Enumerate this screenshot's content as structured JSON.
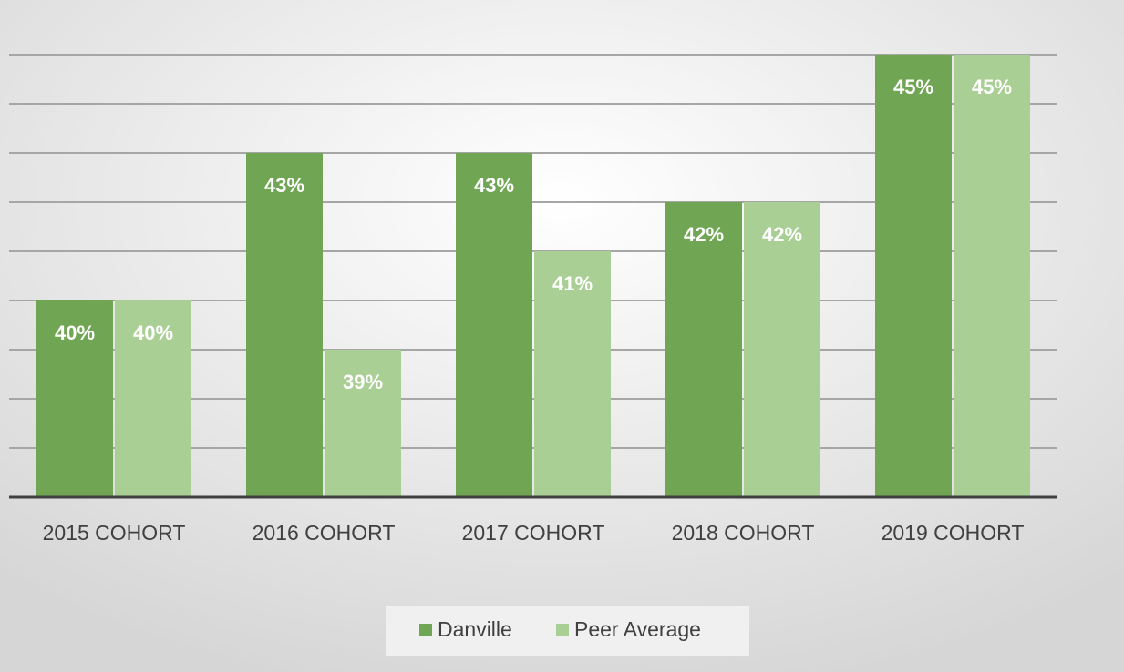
{
  "chart_data": {
    "type": "bar",
    "categories": [
      "2015 COHORT",
      "2016 COHORT",
      "2017 COHORT",
      "2018 COHORT",
      "2019 COHORT"
    ],
    "series": [
      {
        "name": "Danville",
        "color": "#70a553",
        "values": [
          40,
          43,
          43,
          42,
          45
        ],
        "value_labels": [
          "40%",
          "43%",
          "43%",
          "42%",
          "45%"
        ]
      },
      {
        "name": "Peer Average",
        "color": "#a9cf95",
        "values": [
          40,
          39,
          41,
          42,
          45
        ],
        "value_labels": [
          "40%",
          "39%",
          "41%",
          "42%",
          "45%"
        ]
      }
    ],
    "ylim": [
      36,
      45
    ],
    "yticks": [
      36,
      37,
      38,
      39,
      40,
      41,
      42,
      43,
      44,
      45
    ],
    "grid": true,
    "legend": "bottom"
  }
}
